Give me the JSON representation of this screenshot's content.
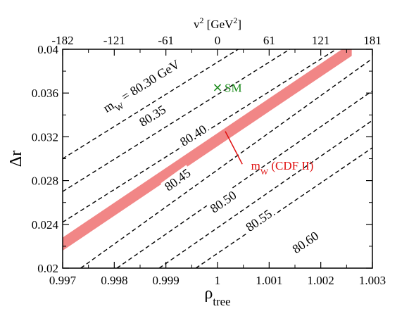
{
  "chart_data": {
    "type": "line",
    "title": "",
    "xlabel": {
      "main": "ρ",
      "sub": "tree"
    },
    "ylabel": "Δr",
    "top_axis_label": "v² [GeV²]",
    "xlim": [
      0.997,
      1.003
    ],
    "ylim": [
      0.02,
      0.04
    ],
    "x_ticks": [
      0.997,
      0.998,
      0.999,
      1,
      1.001,
      1.002,
      1.003
    ],
    "x_tick_labels": [
      "0.997",
      "0.998",
      "0.999",
      "1",
      "1.001",
      "1.002",
      "1.003"
    ],
    "y_ticks": [
      0.02,
      0.024,
      0.028,
      0.032,
      0.036,
      0.04
    ],
    "y_tick_labels": [
      "0.02",
      "0.024",
      "0.028",
      "0.032",
      "0.036",
      "0.04"
    ],
    "top_ticks": [
      {
        "x": 0.997,
        "label": "-182"
      },
      {
        "x": 0.998,
        "label": "-121"
      },
      {
        "x": 0.999,
        "label": "-61"
      },
      {
        "x": 1.0,
        "label": "0"
      },
      {
        "x": 1.001,
        "label": "61"
      },
      {
        "x": 1.002,
        "label": "121"
      },
      {
        "x": 1.003,
        "label": "181"
      }
    ],
    "series": [
      {
        "label": "m",
        "label_sub": "W",
        "label_suffix": " = 80.30 GeV",
        "points": [
          [
            0.997,
            0.03
          ],
          [
            1.0004,
            0.04
          ]
        ],
        "label_at": [
          0.99785,
          0.0342
        ]
      },
      {
        "label": "80.35",
        "points": [
          [
            0.997,
            0.027
          ],
          [
            1.0014,
            0.04
          ]
        ],
        "label_at": [
          0.99855,
          0.0329
        ]
      },
      {
        "label": "80.40",
        "points": [
          [
            0.997,
            0.0242
          ],
          [
            1.0023,
            0.04
          ]
        ],
        "label_at": [
          0.99934,
          0.0311
        ]
      },
      {
        "label": "80.45",
        "points": [
          [
            0.99735,
            0.02
          ],
          [
            1.00325,
            0.04
          ]
        ],
        "label_at": [
          0.99905,
          0.027
        ]
      },
      {
        "label": "80.50",
        "points": [
          [
            0.99805,
            0.02
          ],
          [
            1.003,
            0.0362
          ]
        ],
        "label_at": [
          0.99993,
          0.025
        ]
      },
      {
        "label": "80.55",
        "points": [
          [
            0.99887,
            0.02
          ],
          [
            1.003,
            0.0335
          ]
        ],
        "label_at": [
          1.00062,
          0.0233
        ]
      },
      {
        "label": "80.60",
        "points": [
          [
            0.99958,
            0.02
          ],
          [
            1.003,
            0.031
          ]
        ],
        "label_at": [
          1.00152,
          0.0213
        ]
      }
    ],
    "band": {
      "label": "m",
      "label_sub": "W",
      "label_suffix": " (CDF II)",
      "color": "#f08080",
      "center": [
        [
          0.997,
          0.0222
        ],
        [
          1.0026,
          0.04
        ]
      ],
      "half_width": 0.0006,
      "arrow_from": [
        1.00048,
        0.0295
      ],
      "arrow_to": [
        1.00015,
        0.0325
      ],
      "label_at": [
        1.00065,
        0.029
      ]
    },
    "points": [
      {
        "label": "SM",
        "x": 1.0,
        "y": 0.0365,
        "color": "#1a8a1a",
        "marker": "x"
      }
    ],
    "line_style": "dashed",
    "grid": false,
    "legend": "none"
  }
}
